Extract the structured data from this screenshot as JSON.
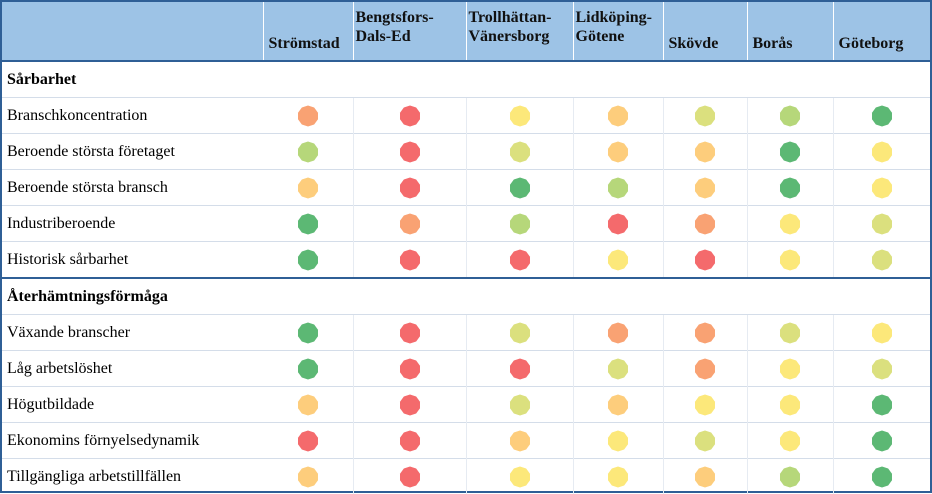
{
  "header": {
    "columns": [
      "Strömstad",
      "Bengtsfors-\nDals-Ed",
      "Trollhättan-\nVänersborg",
      "Lidköping-\nGötene",
      "Skövde",
      "Borås",
      "Göteborg"
    ]
  },
  "colors": {
    "green": "#5cb874",
    "lightgreen": "#b6d77a",
    "yellowgreen": "#dbe07e",
    "yellow": "#fce87a",
    "amber": "#fdcd7c",
    "orange": "#f9a273",
    "red": "#f46a6c"
  },
  "sections": [
    {
      "title": "Sårbarhet",
      "rows": [
        {
          "label": "Branschkoncentration",
          "values": [
            "orange",
            "red",
            "yellow",
            "amber",
            "yellowgreen",
            "lightgreen",
            "green"
          ]
        },
        {
          "label": "Beroende största företaget",
          "values": [
            "lightgreen",
            "red",
            "yellowgreen",
            "amber",
            "amber",
            "green",
            "yellow"
          ]
        },
        {
          "label": "Beroende största bransch",
          "values": [
            "amber",
            "red",
            "green",
            "lightgreen",
            "amber",
            "green",
            "yellow"
          ]
        },
        {
          "label": "Industriberoende",
          "values": [
            "green",
            "orange",
            "lightgreen",
            "red",
            "orange",
            "yellow",
            "yellowgreen"
          ]
        },
        {
          "label": "Historisk sårbarhet",
          "values": [
            "green",
            "red",
            "red",
            "yellow",
            "red",
            "yellow",
            "yellowgreen"
          ]
        }
      ]
    },
    {
      "title": "Återhämtningsförmåga",
      "rows": [
        {
          "label": "Växande branscher",
          "values": [
            "green",
            "red",
            "yellowgreen",
            "orange",
            "orange",
            "yellowgreen",
            "yellow"
          ]
        },
        {
          "label": "Låg arbetslöshet",
          "values": [
            "green",
            "red",
            "red",
            "yellowgreen",
            "orange",
            "yellow",
            "yellowgreen"
          ]
        },
        {
          "label": "Högutbildade",
          "values": [
            "amber",
            "red",
            "yellowgreen",
            "amber",
            "yellow",
            "yellow",
            "green"
          ]
        },
        {
          "label": "Ekonomins förnyelsedynamik",
          "values": [
            "red",
            "red",
            "amber",
            "yellow",
            "yellowgreen",
            "yellow",
            "green"
          ]
        },
        {
          "label": "Tillgängliga arbetstillfällen",
          "values": [
            "amber",
            "red",
            "yellow",
            "yellow",
            "amber",
            "lightgreen",
            "green"
          ]
        }
      ]
    }
  ]
}
